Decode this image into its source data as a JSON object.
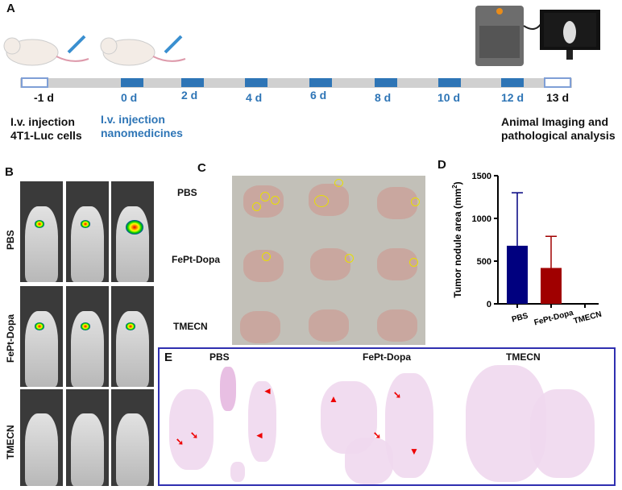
{
  "panels": {
    "A": "A",
    "B": "B",
    "C": "C",
    "D": "D",
    "E": "E"
  },
  "timeline": {
    "days": [
      "-1 d",
      "0 d",
      "2 d",
      "4 d",
      "6 d",
      "8 d",
      "10 d",
      "12 d",
      "13 d"
    ],
    "notes": {
      "cells_l1": "I.v. injection",
      "cells_l2": "4T1-Luc cells",
      "nano_l1": "I.v. injection",
      "nano_l2": "nanomedicines",
      "end_l1": "Animal Imaging  and",
      "end_l2": "pathological analysis"
    }
  },
  "groups": [
    "PBS",
    "FePt-Dopa",
    "TMECN"
  ],
  "colors": {
    "accent_blue": "#2e75b6",
    "pbs_bar": "#00007f",
    "fept_bar": "#a00000",
    "panel_e_border": "#2f2fb0"
  },
  "chart_data": {
    "type": "bar",
    "categories": [
      "PBS",
      "FePt-Dopa",
      "TMECN"
    ],
    "values": [
      680,
      420,
      0
    ],
    "error_upper": [
      1300,
      790,
      0
    ],
    "ylabel": "Tumor nodule area (mm2)",
    "ylabel_main": "Tumor nodule area (mm",
    "ylabel_sup": "2",
    "ylabel_end": ")",
    "ylim": [
      0,
      1500
    ],
    "yticks": [
      "0",
      "500",
      "1000",
      "1500"
    ],
    "colors": [
      "#00007f",
      "#a00000",
      "#a00000"
    ]
  }
}
